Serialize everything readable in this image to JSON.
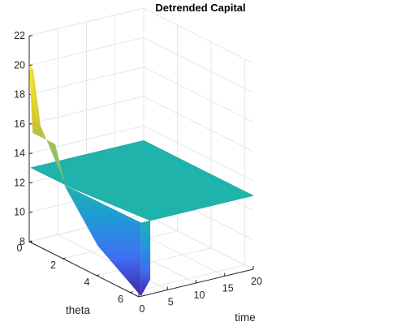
{
  "chart_data": {
    "type": "surface",
    "title": "Detrended Capital",
    "xlabel": "time",
    "ylabel": "theta",
    "zlabel": "",
    "xlim": [
      0,
      20
    ],
    "ylim": [
      0,
      6.5
    ],
    "zlim": [
      8,
      22
    ],
    "x_ticks": [
      "0",
      "5",
      "10",
      "15",
      "20"
    ],
    "y_ticks": [
      "0",
      "2",
      "4",
      "6"
    ],
    "z_ticks": [
      "8",
      "10",
      "12",
      "14",
      "16",
      "18",
      "20",
      "22"
    ],
    "grid": true,
    "colormap": "parula",
    "steady_state": 13.0,
    "series": [
      {
        "theta": 0.0,
        "time": [
          0,
          0.5,
          1,
          2,
          20
        ],
        "value": [
          20.0,
          18.0,
          16.5,
          13.05,
          13.0
        ]
      },
      {
        "theta": 2.0,
        "time": [
          0,
          0.5,
          1,
          2,
          20
        ],
        "value": [
          15.5,
          15.0,
          14.8,
          13.05,
          13.0
        ]
      },
      {
        "theta": 4.0,
        "time": [
          0,
          0.5,
          1,
          2,
          20
        ],
        "value": [
          10.0,
          10.5,
          11.5,
          12.95,
          13.0
        ]
      },
      {
        "theta": 6.5,
        "time": [
          0,
          0.5,
          1,
          2,
          20
        ],
        "value": [
          8.0,
          8.1,
          9.0,
          12.95,
          13.0
        ]
      }
    ],
    "colors": {
      "low": "#3e26a8",
      "mid": "#20b2aa",
      "high": "#f9fb0e",
      "grid": "#e6e6e6",
      "axis": "#262626"
    }
  }
}
